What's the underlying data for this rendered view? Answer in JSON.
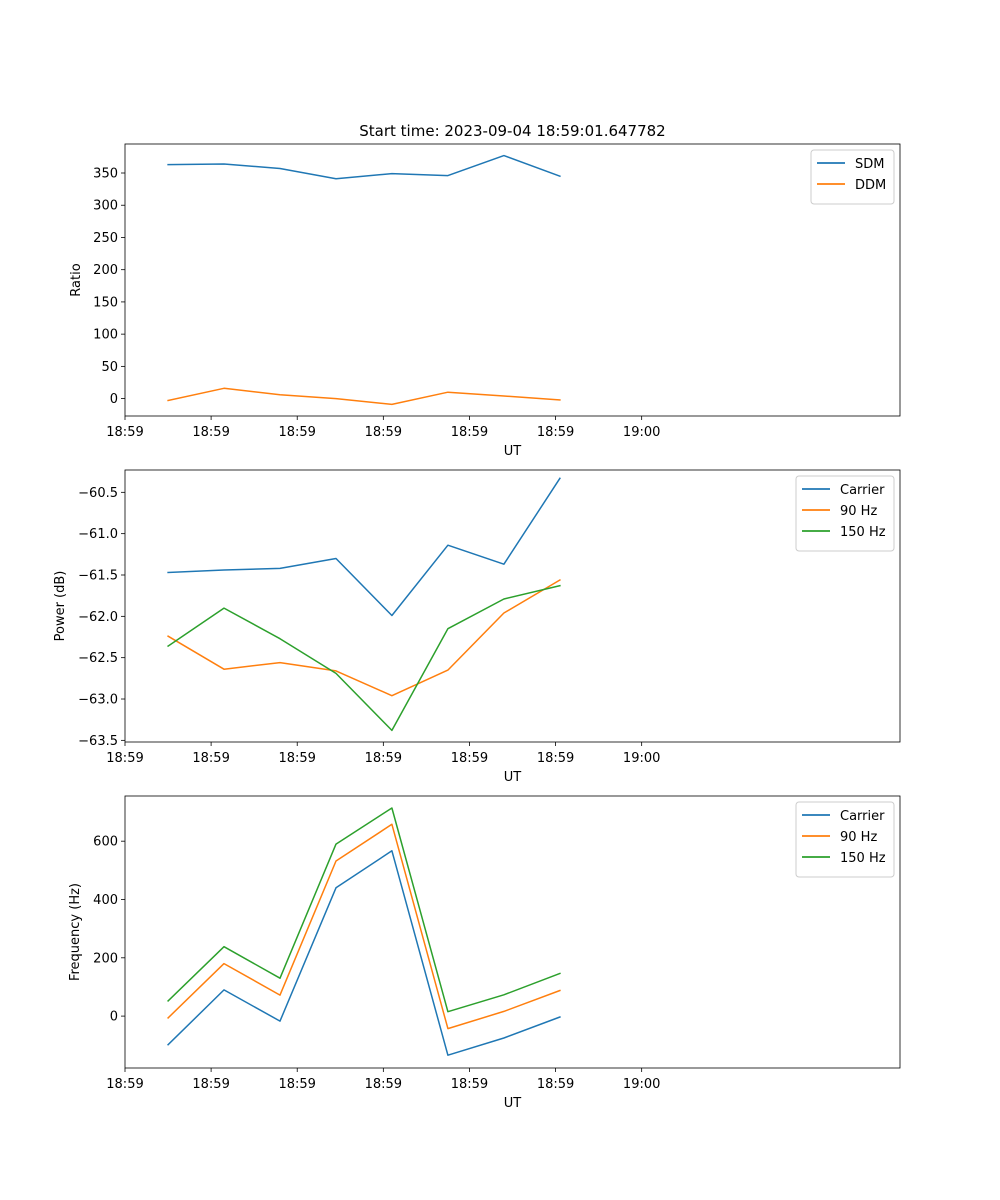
{
  "chart_data": [
    {
      "type": "line",
      "title": "Start time: 2023-09-04 18:59:01.647782",
      "xlabel": "UT",
      "ylabel": "Ratio",
      "xlim": [
        0,
        9
      ],
      "ylim": [
        -27,
        395
      ],
      "x": [
        0.5,
        1.15,
        1.8,
        2.45,
        3.1,
        3.75,
        4.4,
        5.05
      ],
      "xticks": [
        0,
        1,
        2,
        3,
        4,
        5,
        6
      ],
      "xticklabels": [
        "18:59",
        "18:59",
        "18:59",
        "18:59",
        "18:59",
        "18:59",
        "19:00"
      ],
      "yticks": [
        0,
        50,
        100,
        150,
        200,
        250,
        300,
        350
      ],
      "yticklabels": [
        "0",
        "50",
        "100",
        "150",
        "200",
        "250",
        "300",
        "350"
      ],
      "legend": "top-right",
      "series": [
        {
          "name": "SDM",
          "color": "#1f77b4",
          "values": [
            363,
            364,
            357,
            341,
            349,
            346,
            377,
            345
          ]
        },
        {
          "name": "DDM",
          "color": "#ff7f0e",
          "values": [
            -3,
            16,
            6,
            0,
            -9,
            10,
            4,
            -2
          ]
        }
      ]
    },
    {
      "type": "line",
      "title": "",
      "xlabel": "UT",
      "ylabel": "Power (dB)",
      "xlim": [
        0,
        9
      ],
      "ylim": [
        -63.52,
        -60.23
      ],
      "x": [
        0.5,
        1.15,
        1.8,
        2.45,
        3.1,
        3.75,
        4.4,
        5.05
      ],
      "xticks": [
        0,
        1,
        2,
        3,
        4,
        5,
        6
      ],
      "xticklabels": [
        "18:59",
        "18:59",
        "18:59",
        "18:59",
        "18:59",
        "18:59",
        "19:00"
      ],
      "yticks": [
        -63.5,
        -63.0,
        -62.5,
        -62.0,
        -61.5,
        -61.0,
        -60.5
      ],
      "yticklabels": [
        "−63.5",
        "−63.0",
        "−62.5",
        "−62.0",
        "−61.5",
        "−61.0",
        "−60.5"
      ],
      "legend": "top-right",
      "series": [
        {
          "name": "Carrier",
          "color": "#1f77b4",
          "values": [
            -61.47,
            -61.44,
            -61.42,
            -61.3,
            -61.99,
            -61.14,
            -61.37,
            -60.33
          ]
        },
        {
          "name": "90 Hz",
          "color": "#ff7f0e",
          "values": [
            -62.24,
            -62.64,
            -62.56,
            -62.66,
            -62.96,
            -62.65,
            -61.96,
            -61.56
          ]
        },
        {
          "name": "150 Hz",
          "color": "#2ca02c",
          "values": [
            -62.36,
            -61.9,
            -62.27,
            -62.69,
            -63.38,
            -62.15,
            -61.79,
            -61.63
          ]
        }
      ]
    },
    {
      "type": "line",
      "title": "",
      "xlabel": "UT",
      "ylabel": "Frequency (Hz)",
      "xlim": [
        0,
        9
      ],
      "ylim": [
        -178,
        755
      ],
      "x": [
        0.5,
        1.15,
        1.8,
        2.45,
        3.1,
        3.75,
        4.4,
        5.05
      ],
      "xticks": [
        0,
        1,
        2,
        3,
        4,
        5,
        6
      ],
      "xticklabels": [
        "18:59",
        "18:59",
        "18:59",
        "18:59",
        "18:59",
        "18:59",
        "19:00"
      ],
      "yticks": [
        0,
        200,
        400,
        600
      ],
      "yticklabels": [
        "0",
        "200",
        "400",
        "600"
      ],
      "legend": "top-right",
      "series": [
        {
          "name": "Carrier",
          "color": "#1f77b4",
          "values": [
            -98,
            90,
            -17,
            440,
            567,
            -134,
            -75,
            -3
          ]
        },
        {
          "name": "90 Hz",
          "color": "#ff7f0e",
          "values": [
            -6,
            180,
            72,
            532,
            658,
            -43,
            16,
            88
          ]
        },
        {
          "name": "150 Hz",
          "color": "#2ca02c",
          "values": [
            52,
            238,
            130,
            590,
            714,
            15,
            73,
            146
          ]
        }
      ]
    }
  ]
}
